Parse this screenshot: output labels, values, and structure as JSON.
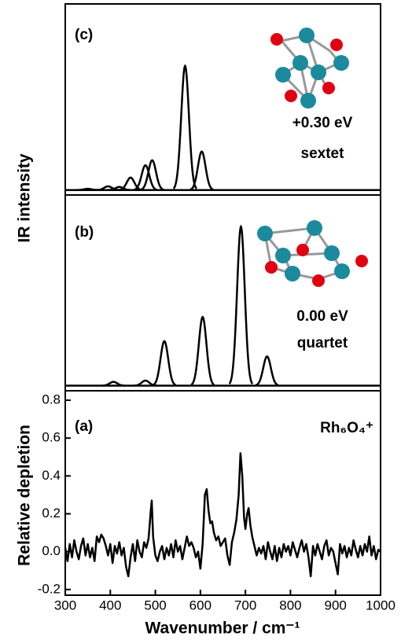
{
  "chart_data": [
    {
      "type": "spectrum",
      "panel_label": "(c)",
      "energy": "+0.30 eV",
      "spin": "sextet",
      "ylabel": "IR intensity",
      "peak_positions": [
        350,
        395,
        420,
        445,
        478,
        493,
        566,
        603
      ],
      "peak_heights": [
        1,
        3,
        2.5,
        10,
        20,
        24,
        100,
        31
      ],
      "fwhm": 20,
      "color": "#000000",
      "xlim": [
        300,
        1000
      ],
      "ylim": [
        -4,
        150
      ]
    },
    {
      "type": "spectrum",
      "panel_label": "(b)",
      "energy": "0.00 eV",
      "spin": "quartet",
      "peak_positions": [
        407,
        478,
        520,
        605,
        690,
        748
      ],
      "peak_heights": [
        3,
        4,
        35,
        54,
        125,
        23
      ],
      "fwhm": 20,
      "color": "#000000",
      "xlim": [
        300,
        1000
      ],
      "ylim": [
        -4,
        150
      ]
    },
    {
      "type": "line",
      "panel_label": "(a)",
      "species": "Rh₆O₄⁺",
      "ylabel": "Relative depletion",
      "xlabel": "Wavenumber / cm⁻¹",
      "xlim": [
        300,
        1000
      ],
      "xticks": [
        300,
        400,
        500,
        600,
        700,
        800,
        900,
        1000
      ],
      "ylim": [
        -0.23,
        0.85
      ],
      "yticks": [
        0.8,
        0.6,
        0.4,
        0.2,
        {
          "value": 0,
          "label": "0.0"
        },
        -0.2
      ],
      "series": [
        {
          "color": "#000000",
          "x": [
            300,
            305,
            310,
            315,
            320,
            325,
            330,
            335,
            340,
            345,
            350,
            355,
            360,
            365,
            370,
            375,
            380,
            385,
            390,
            395,
            400,
            405,
            410,
            415,
            420,
            425,
            430,
            435,
            440,
            445,
            450,
            455,
            460,
            465,
            470,
            475,
            480,
            485,
            490,
            492,
            495,
            500,
            505,
            510,
            515,
            520,
            525,
            530,
            535,
            540,
            545,
            550,
            555,
            560,
            565,
            570,
            575,
            580,
            585,
            590,
            595,
            600,
            605,
            610,
            614,
            618,
            622,
            626,
            630,
            635,
            640,
            645,
            650,
            655,
            660,
            665,
            670,
            675,
            680,
            685,
            689,
            693,
            697,
            700,
            704,
            707,
            711,
            715,
            720,
            725,
            730,
            735,
            740,
            745,
            750,
            755,
            760,
            765,
            770,
            775,
            780,
            785,
            790,
            795,
            800,
            805,
            810,
            815,
            820,
            825,
            830,
            835,
            840,
            845,
            850,
            855,
            860,
            865,
            870,
            875,
            880,
            885,
            890,
            895,
            900,
            905,
            910,
            915,
            920,
            925,
            930,
            935,
            940,
            945,
            950,
            955,
            960,
            965,
            970,
            975,
            980,
            985,
            990,
            995,
            1000
          ],
          "values": [
            0.02,
            -0.05,
            0.04,
            -0.03,
            0.06,
            0.0,
            -0.04,
            0.03,
            0.07,
            -0.02,
            0.04,
            -0.03,
            0.02,
            -0.05,
            0.08,
            0.05,
            0.09,
            0.07,
            0.03,
            -0.02,
            0.04,
            -0.06,
            0.03,
            -0.01,
            0.05,
            -0.02,
            0.02,
            -0.08,
            -0.13,
            -0.03,
            0.04,
            -0.05,
            0.06,
            0.0,
            -0.03,
            0.05,
            0.02,
            0.07,
            0.22,
            0.27,
            0.08,
            -0.02,
            -0.05,
            0.0,
            0.03,
            -0.04,
            0.02,
            -0.02,
            0.04,
            -0.03,
            0.06,
            0.0,
            0.03,
            -0.04,
            0.02,
            0.08,
            0.03,
            0.05,
            0.02,
            -0.03,
            0.0,
            -0.09,
            0.04,
            0.3,
            0.33,
            0.22,
            0.15,
            0.16,
            0.1,
            0.06,
            0.08,
            0.03,
            0.05,
            0.07,
            -0.02,
            -0.07,
            0.05,
            0.1,
            0.17,
            0.3,
            0.52,
            0.4,
            0.18,
            0.12,
            0.2,
            0.23,
            0.14,
            0.08,
            0.03,
            -0.02,
            0.02,
            -0.01,
            0.03,
            -0.04,
            0.05,
            0.0,
            -0.04,
            0.03,
            -0.05,
            0.02,
            -0.03,
            0.04,
            0.0,
            0.03,
            -0.02,
            0.05,
            0.01,
            -0.03,
            0.02,
            0.06,
            0.0,
            0.04,
            -0.03,
            -0.13,
            0.03,
            -0.02,
            0.04,
            0.0,
            -0.04,
            0.03,
            0.06,
            -0.02,
            0.02,
            0.0,
            -0.06,
            -0.12,
            0.04,
            -0.01,
            0.03,
            -0.03,
            0.02,
            -0.02,
            0.06,
            0.01,
            -0.03,
            0.03,
            -0.02,
            0.04,
            0.0,
            0.08,
            -0.02,
            0.03,
            -0.04,
            0.01,
            0.0
          ]
        }
      ]
    }
  ]
}
